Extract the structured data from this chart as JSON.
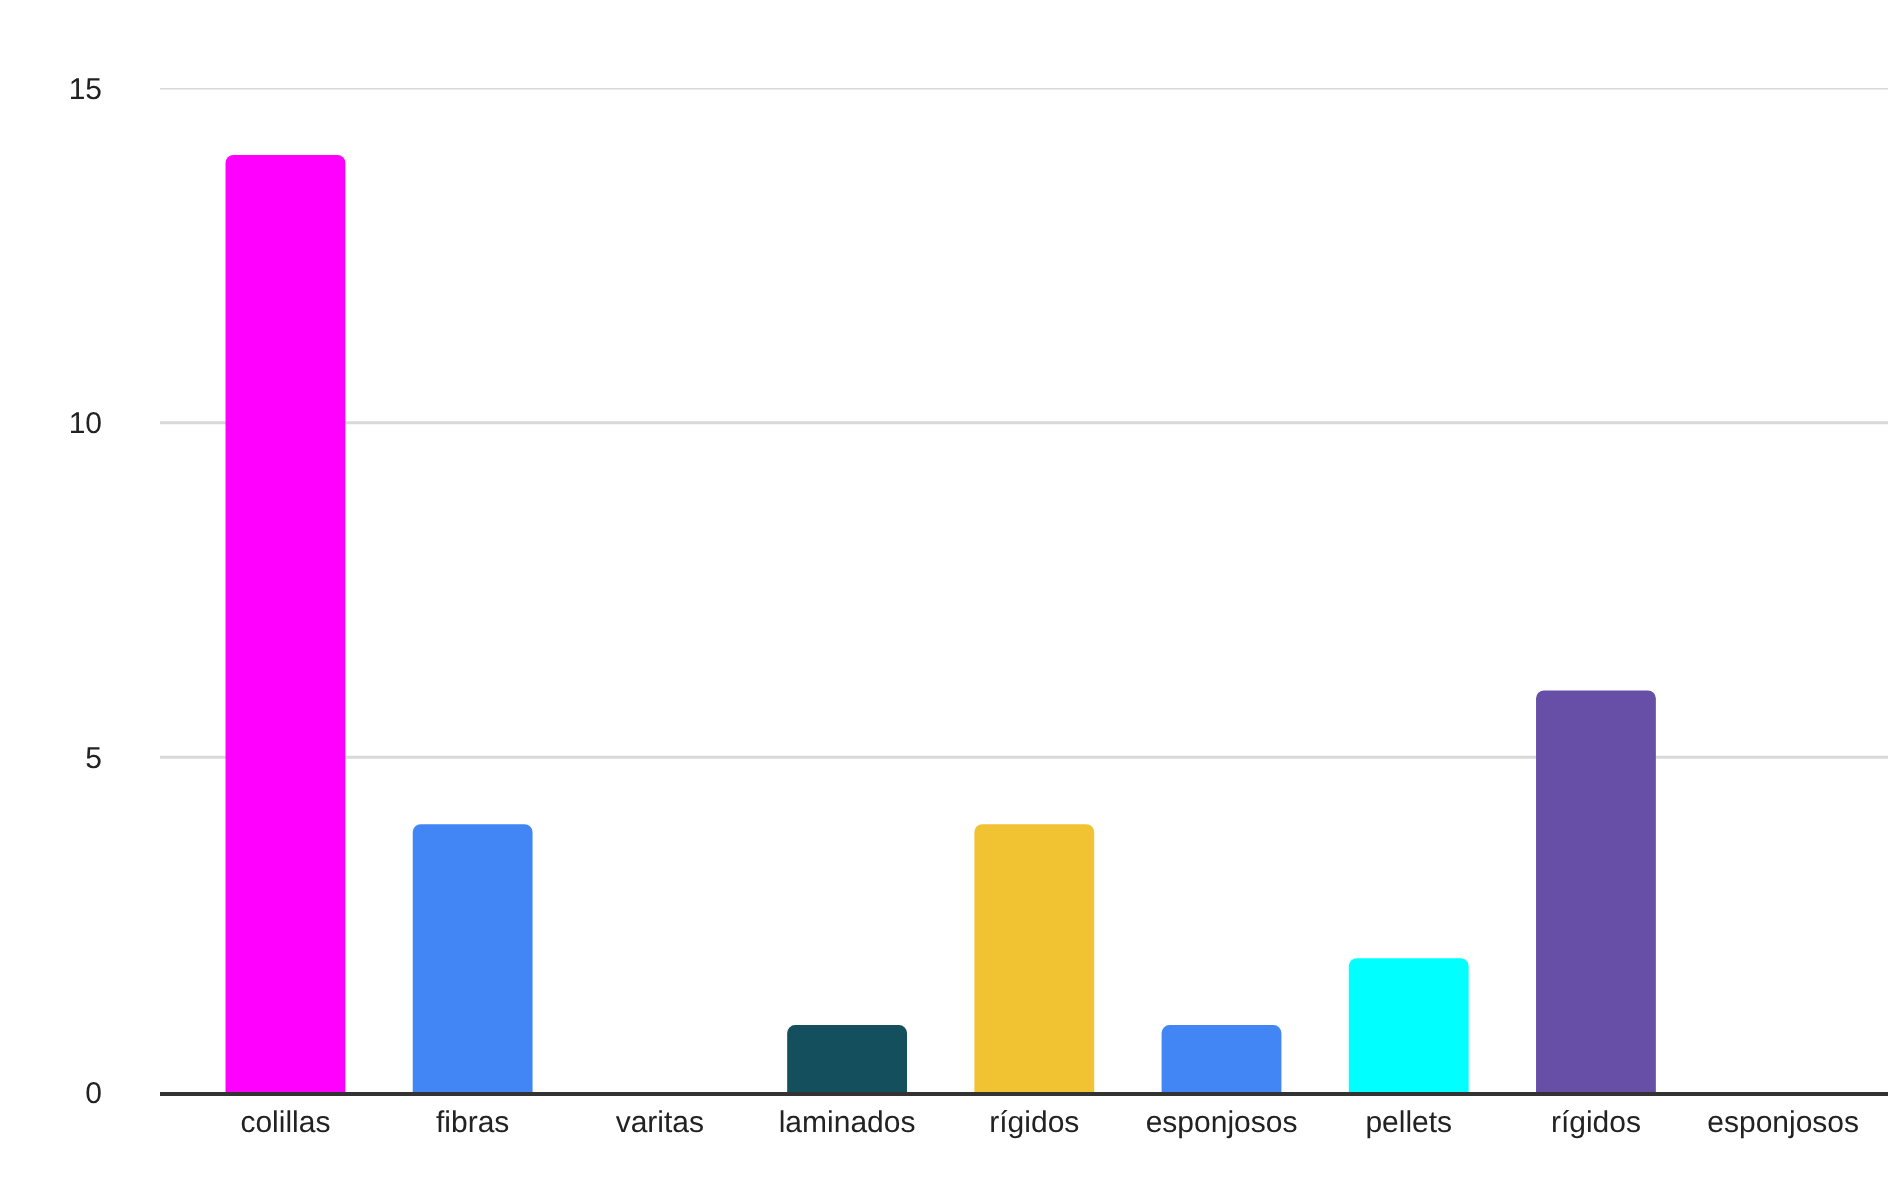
{
  "chart_data": {
    "type": "bar",
    "categories": [
      "colillas",
      "fibras",
      "varitas",
      "laminados",
      "rígidos",
      "esponjosos",
      "pellets",
      "rígidos",
      "esponjosos"
    ],
    "values": [
      14,
      4,
      0,
      1,
      4,
      1,
      2,
      6,
      0
    ],
    "colors": [
      "#ff00ff",
      "#4285f4",
      "#4285f4",
      "#134f5c",
      "#f1c232",
      "#4285f4",
      "#00ffff",
      "#674ea7",
      "#4285f4"
    ],
    "ylim": [
      0,
      15
    ],
    "yticks": [
      0,
      5,
      10,
      15
    ],
    "grid": "y"
  }
}
